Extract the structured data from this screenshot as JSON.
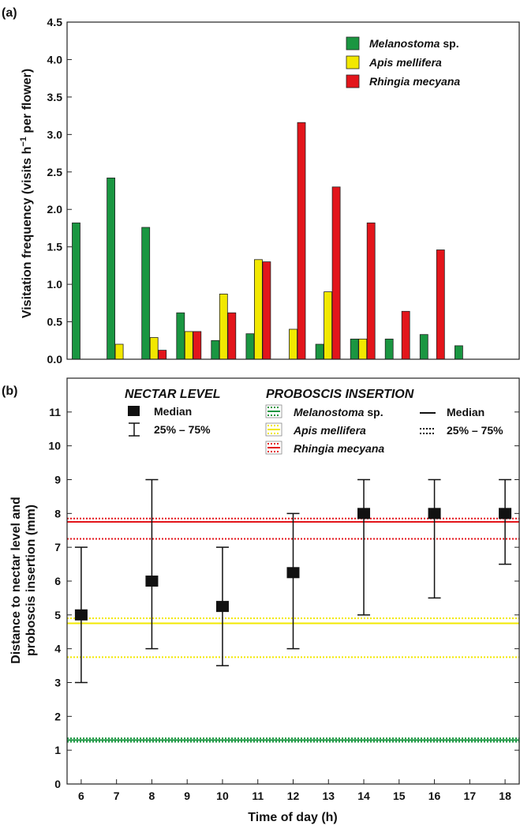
{
  "panel_a": {
    "letter": "(a)",
    "ylabel_pre": "Visitation frequency (visits h",
    "ylabel_sup": "−1",
    "ylabel_post": " per flower)",
    "yticks": [
      "0.0",
      "0.5",
      "1.0",
      "1.5",
      "2.0",
      "2.5",
      "3.0",
      "3.5",
      "4.0",
      "4.5"
    ],
    "legend": [
      {
        "name": "Melanostoma",
        "suffix": " sp."
      },
      {
        "name": "Apis mellifera",
        "suffix": ""
      },
      {
        "name": "Rhingia mecyana",
        "suffix": ""
      }
    ]
  },
  "panel_b": {
    "letter": "(b)",
    "ylabel_line1": "Distance to nectar level and",
    "ylabel_line2": "proboscis insertion (mm)",
    "xlabel": "Time of day (h)",
    "yticks": [
      "0",
      "1",
      "2",
      "3",
      "4",
      "5",
      "6",
      "7",
      "8",
      "9",
      "10",
      "11"
    ],
    "xticks": [
      "6",
      "7",
      "8",
      "9",
      "10",
      "11",
      "12",
      "13",
      "14",
      "15",
      "16",
      "17",
      "18"
    ],
    "nectar_title": "NECTAR LEVEL",
    "nectar_median": "Median",
    "nectar_iqr": "25% – 75%",
    "proboscis_title": "PROBOSCIS INSERTION",
    "species": [
      {
        "name": "Melanostoma",
        "suffix": " sp."
      },
      {
        "name": "Apis mellifera",
        "suffix": ""
      },
      {
        "name": "Rhingia mecyana",
        "suffix": ""
      }
    ],
    "line_median": "Median",
    "line_iqr": "25% – 75%"
  },
  "chart_data": [
    {
      "type": "bar",
      "ylabel": "Visitation frequency (visits h−1 per flower)",
      "ylim": [
        0,
        4.5
      ],
      "grid": false,
      "legend_position": "top-right",
      "categories": [
        "6",
        "7",
        "8",
        "9",
        "10",
        "11",
        "12",
        "13",
        "14",
        "15",
        "16",
        "17",
        "18"
      ],
      "series": [
        {
          "name": "Melanostoma sp.",
          "color": "#1a9641",
          "values": [
            1.82,
            2.42,
            1.76,
            0.62,
            0.25,
            0.34,
            0,
            0.2,
            0.27,
            0.27,
            0.33,
            0.18,
            0
          ]
        },
        {
          "name": "Apis mellifera",
          "color": "#f2e800",
          "values": [
            0,
            0.2,
            0.29,
            0.37,
            0.87,
            1.33,
            0.4,
            0.9,
            0.27,
            0,
            0,
            0,
            0
          ]
        },
        {
          "name": "Rhingia mecyana",
          "color": "#e3151b",
          "values": [
            0,
            0,
            0.12,
            0.37,
            0.62,
            1.3,
            3.16,
            2.3,
            1.82,
            0.64,
            1.46,
            0,
            0
          ]
        }
      ]
    },
    {
      "type": "scatter",
      "xlabel": "Time of day (h)",
      "ylabel": "Distance to nectar level and proboscis insertion (mm)",
      "xlim": [
        5.6,
        18.4
      ],
      "ylim": [
        0,
        12
      ],
      "grid": false,
      "nectar_level": {
        "x": [
          6,
          8,
          10,
          12,
          14,
          16,
          18
        ],
        "median": [
          5,
          6,
          5.25,
          6.25,
          8,
          8,
          8
        ],
        "q25": [
          3,
          4,
          3.5,
          4,
          5,
          5.5,
          6.5
        ],
        "q75": [
          7,
          9,
          7,
          8,
          9,
          9,
          9
        ]
      },
      "proboscis_insertion": [
        {
          "name": "Melanostoma sp.",
          "color": "#1a9641",
          "median": 1.3,
          "q25": 1.25,
          "q75": 1.35
        },
        {
          "name": "Apis mellifera",
          "color": "#f2e800",
          "median": 4.75,
          "q25": 3.75,
          "q75": 4.9
        },
        {
          "name": "Rhingia mecyana",
          "color": "#e3151b",
          "median": 7.75,
          "q25": 7.25,
          "q75": 7.85
        }
      ]
    }
  ]
}
